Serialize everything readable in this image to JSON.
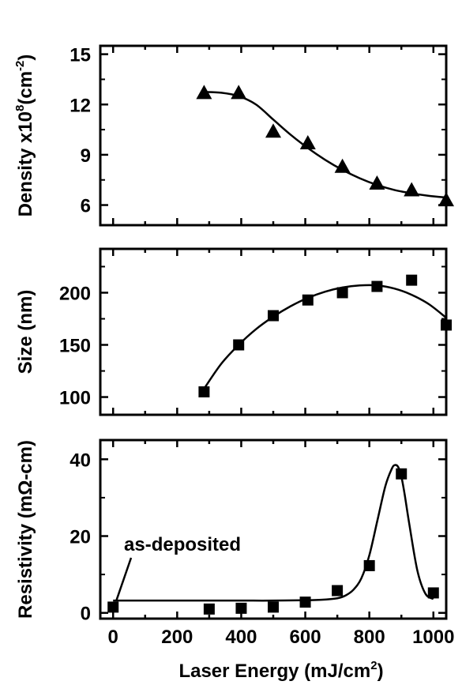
{
  "chart_data": [
    {
      "type": "scatter",
      "panel": "density",
      "ylabel": "Density x10^8(cm^-2)",
      "ylabel_parts": {
        "main": "Density x10",
        "sup1": "8",
        "mid": "(cm",
        "sup2": "-2",
        "end": ")"
      },
      "xlim": [
        0,
        1000
      ],
      "ylim": [
        4.8,
        15.5
      ],
      "yticks": [
        6,
        9,
        12,
        15
      ],
      "marker": "triangle",
      "series": [
        {
          "x": [
            300,
            400,
            500,
            600,
            700,
            800,
            900,
            1000
          ],
          "y": [
            12.7,
            12.7,
            10.4,
            9.7,
            8.3,
            7.3,
            6.9,
            6.3
          ]
        }
      ],
      "fit": {
        "x": [
          300,
          350,
          400,
          450,
          500,
          550,
          600,
          650,
          700,
          750,
          800,
          850,
          900,
          950,
          1000
        ],
        "y": [
          12.75,
          12.7,
          12.5,
          12.0,
          11.1,
          10.2,
          9.4,
          8.7,
          8.1,
          7.6,
          7.2,
          6.9,
          6.7,
          6.55,
          6.45
        ]
      }
    },
    {
      "type": "scatter",
      "panel": "size",
      "ylabel": "Size (nm)",
      "xlim": [
        0,
        1000
      ],
      "ylim": [
        83,
        242
      ],
      "yticks": [
        100,
        150,
        200
      ],
      "marker": "square",
      "series": [
        {
          "x": [
            300,
            400,
            500,
            600,
            700,
            800,
            900,
            1000
          ],
          "y": [
            105,
            150,
            178,
            193,
            200,
            206,
            212,
            169
          ]
        }
      ],
      "fit": {
        "x": [
          300,
          350,
          400,
          450,
          500,
          550,
          600,
          650,
          700,
          750,
          800,
          850,
          900,
          950,
          1000
        ],
        "y": [
          108,
          132,
          150,
          165,
          177,
          187,
          195,
          201,
          205,
          207,
          207,
          204,
          198,
          189,
          176
        ]
      }
    },
    {
      "type": "scatter",
      "panel": "resistivity",
      "ylabel": "Resistivity (mΩ-cm)",
      "xlabel": "Laser Energy (mJ/cm^2)",
      "xlabel_parts": {
        "main": "Laser Energy (mJ/cm",
        "sup": "2",
        "end": ")"
      },
      "xlim": [
        -40,
        1040
      ],
      "ylim": [
        -1.5,
        45
      ],
      "yticks": [
        0,
        20,
        40
      ],
      "xticks": [
        0,
        200,
        400,
        600,
        800,
        1000
      ],
      "marker": "square",
      "annotation": "as-deposited",
      "series": [
        {
          "x": [
            0,
            300,
            400,
            500,
            600,
            700,
            800,
            900,
            1000
          ],
          "y": [
            1.5,
            1.0,
            1.2,
            1.5,
            2.8,
            5.8,
            12.3,
            36.2,
            5.2
          ]
        }
      ],
      "fit": {
        "x": [
          0,
          100,
          200,
          300,
          400,
          500,
          600,
          650,
          700,
          725,
          750,
          775,
          800,
          825,
          850,
          870,
          880,
          890,
          900,
          910,
          925,
          950,
          975,
          1000
        ],
        "y": [
          3.2,
          3.2,
          3.2,
          3.2,
          3.2,
          3.2,
          3.3,
          3.4,
          3.8,
          4.5,
          6.0,
          9.0,
          15.0,
          24.0,
          33.0,
          37.5,
          38.5,
          38.0,
          35.5,
          31.0,
          23.0,
          11.0,
          5.0,
          3.6
        ]
      }
    }
  ]
}
